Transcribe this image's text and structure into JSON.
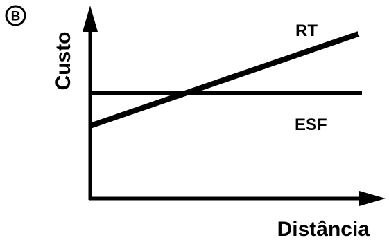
{
  "panel_badge": "B",
  "axes": {
    "y_label": "Custo",
    "x_label": "Distância"
  },
  "lines": [
    {
      "name": "RT",
      "trend": "rising"
    },
    {
      "name": "ESF",
      "trend": "constant"
    }
  ],
  "colors": {
    "ink": "#000000",
    "background": "#ffffff"
  }
}
